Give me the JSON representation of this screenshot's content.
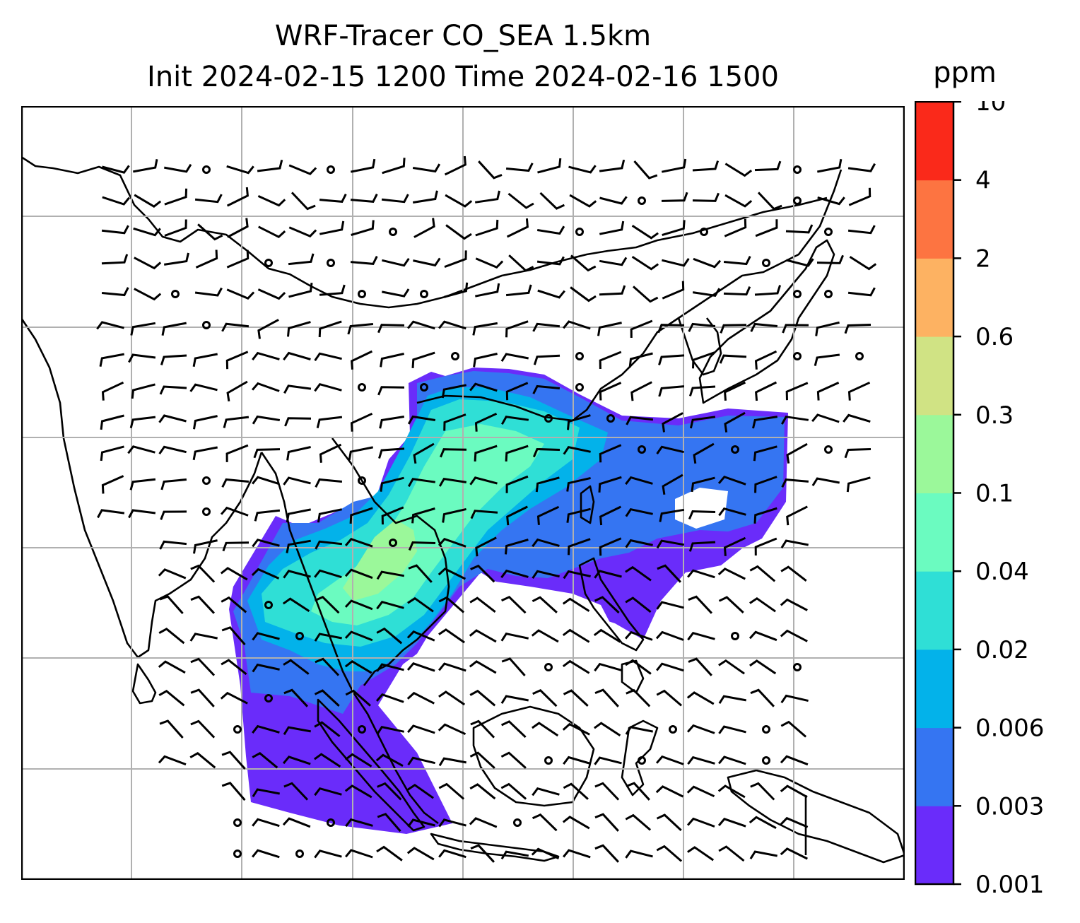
{
  "title": {
    "line1": "WRF-Tracer CO_SEA 1.5km",
    "line2": "Init 2024-02-15 1200 Time 2024-02-16 1500"
  },
  "colorbar": {
    "unit": "ppm",
    "ticks": [
      "0.001",
      "0.003",
      "0.006",
      "0.02",
      "0.04",
      "0.1",
      "0.3",
      "0.6",
      "2",
      "4",
      "10"
    ],
    "colors": [
      "#6a2cfa",
      "#3575f2",
      "#03b2ea",
      "#2fdfd6",
      "#6bfbc0",
      "#9bf89a",
      "#d0e384",
      "#fdb262",
      "#fd7441",
      "#fa291a"
    ]
  },
  "map": {
    "background": "#ffffff",
    "grid_color": "#b0b0b0",
    "coast_color": "#000000"
  }
}
